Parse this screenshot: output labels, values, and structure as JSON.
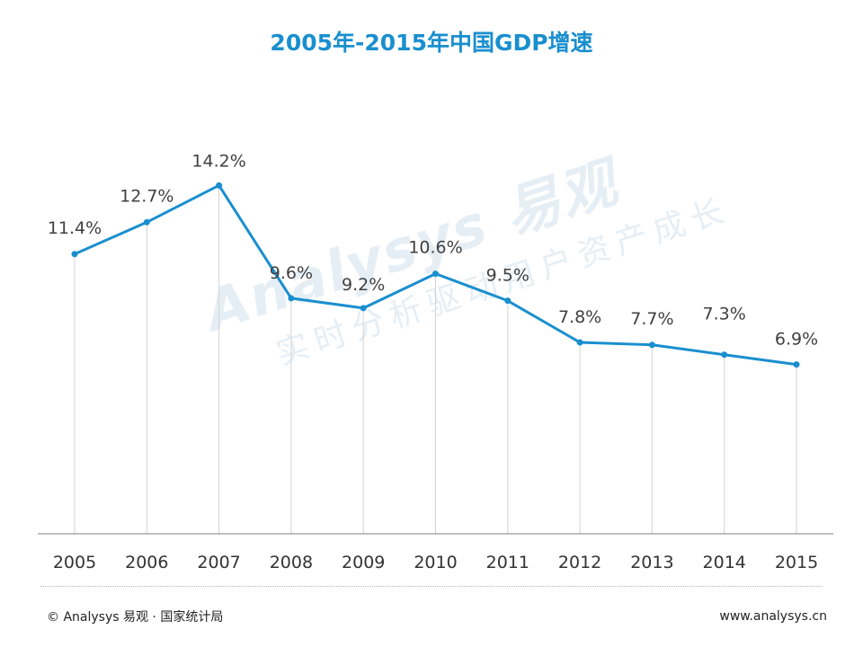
{
  "chart_data": {
    "type": "line",
    "title": "2005年-2015年中国GDP增速",
    "categories": [
      "2005",
      "2006",
      "2007",
      "2008",
      "2009",
      "2010",
      "2011",
      "2012",
      "2013",
      "2014",
      "2015"
    ],
    "series": [
      {
        "values": [
          11.4,
          12.7,
          14.2,
          9.6,
          9.2,
          10.6,
          9.5,
          7.8,
          7.7,
          7.3,
          6.9
        ],
        "labels": [
          "11.4%",
          "12.7%",
          "14.2%",
          "9.6%",
          "9.2%",
          "10.6%",
          "9.5%",
          "7.8%",
          "7.7%",
          "7.3%",
          "6.9%"
        ],
        "color": "#1a8fcf"
      }
    ],
    "ylim": [
      0,
      15.5
    ],
    "grid": false,
    "drop_lines": true
  },
  "watermark": {
    "brand": "Analysys 易观",
    "slogan": "实时分析驱动用户资产成长"
  },
  "footer": {
    "source": "© Analysys 易观 · 国家统计局",
    "url": "www.analysys.cn"
  },
  "colors": {
    "title": "#1a8fcf",
    "line": "#1a8fcf",
    "axis": "#7f7f7f",
    "drop_line": "#d3d3d3",
    "label": "#404040"
  }
}
